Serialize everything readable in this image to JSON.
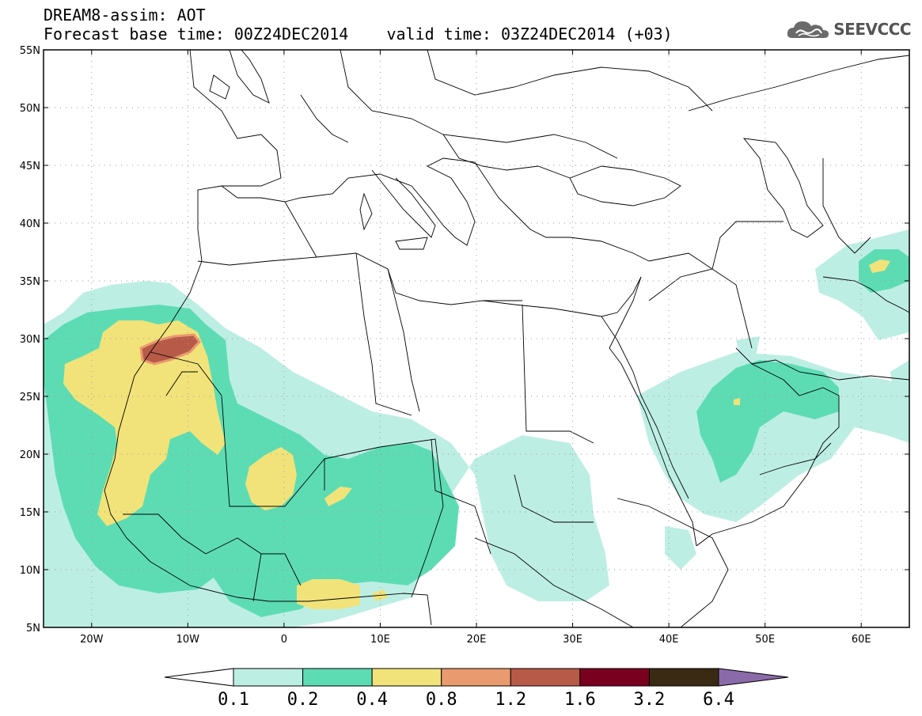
{
  "title": {
    "line1": "DREAM8-assim: AOT",
    "line2": "Forecast base time: 00Z24DEC2014    valid time: 03Z24DEC2014 (+03)"
  },
  "logo": {
    "text": "SEEVCCC",
    "icon": "cloud-icon"
  },
  "map": {
    "lon_range": [
      -25,
      65
    ],
    "lat_range": [
      5,
      55
    ],
    "lat_ticks": [
      "5N",
      "10N",
      "15N",
      "20N",
      "25N",
      "30N",
      "35N",
      "40N",
      "45N",
      "50N",
      "55N"
    ],
    "lon_ticks": [
      "20W",
      "10W",
      "0",
      "10E",
      "20E",
      "30E",
      "40E",
      "50E",
      "60E"
    ]
  },
  "colorbar": {
    "labels": [
      "0.1",
      "0.2",
      "0.4",
      "0.8",
      "1.2",
      "1.6",
      "3.2",
      "6.4"
    ],
    "colors": [
      "#bdeee4",
      "#5ddcb4",
      "#f1e37a",
      "#e99a6e",
      "#b85a48",
      "#7a0020",
      "#3a2a14"
    ],
    "over_color": "#8a6aa8",
    "under_color": "#ffffff"
  }
}
